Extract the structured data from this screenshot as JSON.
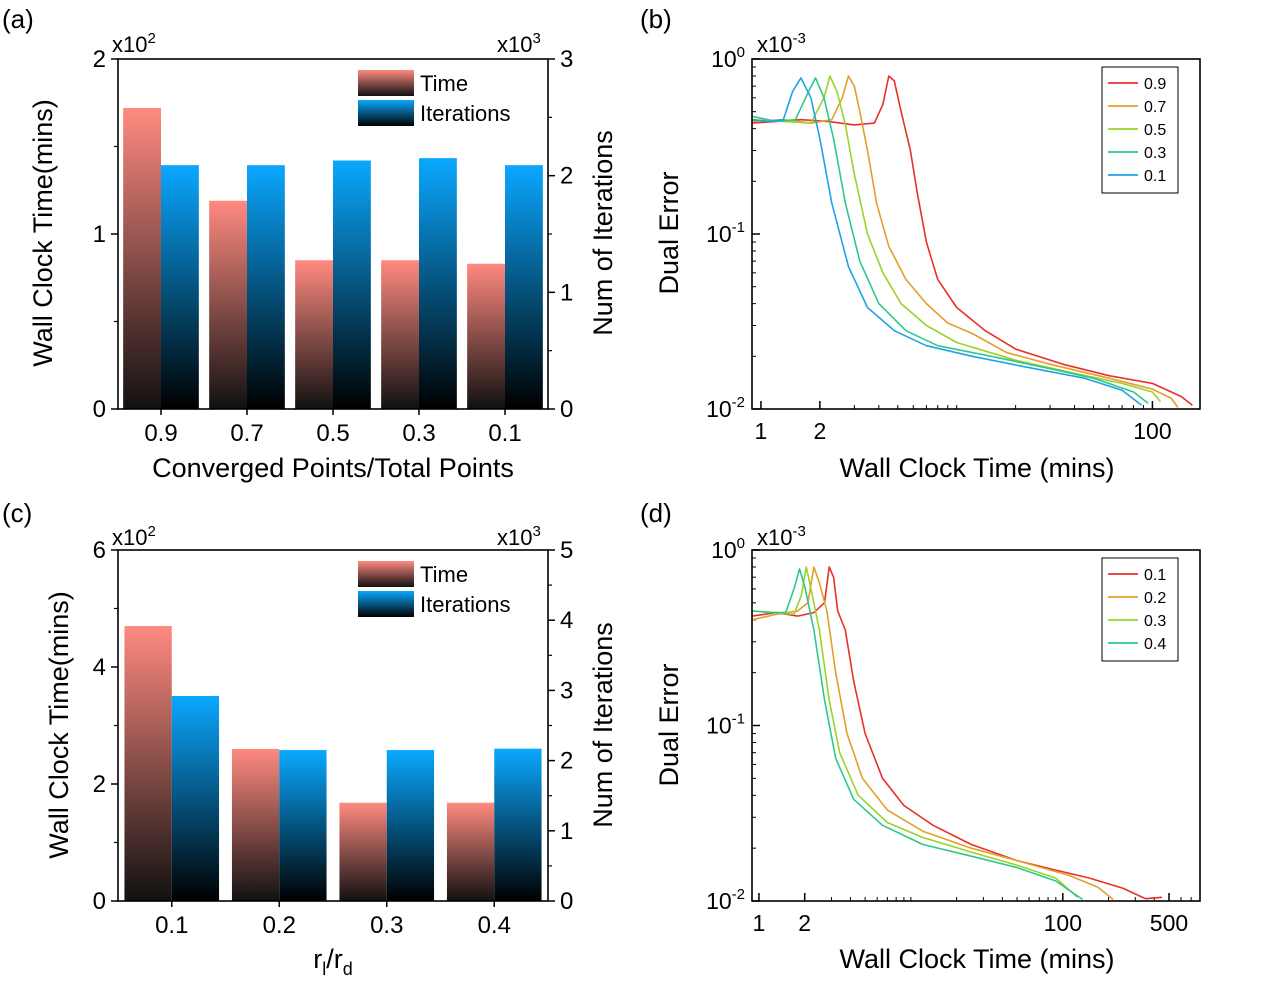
{
  "chart_data": [
    {
      "id": "a",
      "panel_label": "(a)",
      "type": "bar",
      "categories": [
        "0.9",
        "0.7",
        "0.5",
        "0.3",
        "0.1"
      ],
      "xlabel": "Converged Points/Total Points",
      "ylabel_left": "Wall Clock Time(mins)",
      "ylabel_right": "Num of Iterations",
      "multiplier_left": "x10",
      "multiplier_left_exp": "2",
      "multiplier_right": "x10",
      "multiplier_right_exp": "3",
      "ylim_left": [
        0,
        2
      ],
      "ylim_right": [
        0,
        3
      ],
      "yticks_left": [
        "0",
        "1",
        "2"
      ],
      "yticks_right": [
        "0",
        "1",
        "2",
        "3"
      ],
      "legend_position": "top-right",
      "series": [
        {
          "name": "Time",
          "axis": "left",
          "values": [
            1.72,
            1.19,
            0.85,
            0.85,
            0.83
          ]
        },
        {
          "name": "Iterations",
          "axis": "right",
          "values": [
            2.09,
            2.09,
            2.13,
            2.15,
            2.09
          ]
        }
      ]
    },
    {
      "id": "b",
      "panel_label": "(b)",
      "type": "line",
      "x_scale": "log",
      "y_scale": "log",
      "xlabel": "Wall Clock Time (mins)",
      "ylabel": "Dual Error",
      "multiplier": "x10",
      "multiplier_exp": "-3",
      "xlim": [
        0.9,
        175
      ],
      "ylim": [
        0.01,
        1
      ],
      "xticks": [
        {
          "v": 1,
          "t": "1"
        },
        {
          "v": 2,
          "t": "2"
        },
        {
          "v": 100,
          "t": "100"
        }
      ],
      "yticks": [
        {
          "v": 1,
          "b": "10",
          "e": "0"
        },
        {
          "v": 0.1,
          "b": "10",
          "e": "-1"
        },
        {
          "v": 0.01,
          "b": "10",
          "e": "-2"
        }
      ],
      "legend_position": "top-right",
      "series": [
        {
          "name": "0.9",
          "color": "#e8302b",
          "points": [
            [
              0.9,
              0.43
            ],
            [
              1.2,
              0.44
            ],
            [
              1.6,
              0.45
            ],
            [
              2.2,
              0.44
            ],
            [
              3.0,
              0.42
            ],
            [
              3.8,
              0.43
            ],
            [
              4.2,
              0.55
            ],
            [
              4.5,
              0.8
            ],
            [
              4.8,
              0.75
            ],
            [
              5.1,
              0.55
            ],
            [
              5.4,
              0.42
            ],
            [
              5.8,
              0.3
            ],
            [
              6.3,
              0.17
            ],
            [
              7.0,
              0.09
            ],
            [
              8.0,
              0.055
            ],
            [
              10,
              0.038
            ],
            [
              14,
              0.028
            ],
            [
              20,
              0.022
            ],
            [
              35,
              0.018
            ],
            [
              60,
              0.0155
            ],
            [
              100,
              0.014
            ],
            [
              140,
              0.0118
            ],
            [
              160,
              0.0105
            ]
          ]
        },
        {
          "name": "0.7",
          "color": "#e2a02a",
          "points": [
            [
              0.9,
              0.44
            ],
            [
              1.3,
              0.45
            ],
            [
              1.8,
              0.43
            ],
            [
              2.3,
              0.45
            ],
            [
              2.6,
              0.6
            ],
            [
              2.8,
              0.8
            ],
            [
              3.0,
              0.7
            ],
            [
              3.2,
              0.5
            ],
            [
              3.5,
              0.3
            ],
            [
              3.9,
              0.15
            ],
            [
              4.5,
              0.085
            ],
            [
              5.5,
              0.055
            ],
            [
              7,
              0.04
            ],
            [
              9,
              0.031
            ],
            [
              12,
              0.027
            ],
            [
              18,
              0.021
            ],
            [
              30,
              0.018
            ],
            [
              60,
              0.015
            ],
            [
              100,
              0.013
            ],
            [
              125,
              0.0115
            ],
            [
              135,
              0.0102
            ]
          ]
        },
        {
          "name": "0.5",
          "color": "#9ad32a",
          "points": [
            [
              0.9,
              0.45
            ],
            [
              1.3,
              0.44
            ],
            [
              1.8,
              0.43
            ],
            [
              2.1,
              0.6
            ],
            [
              2.25,
              0.8
            ],
            [
              2.45,
              0.65
            ],
            [
              2.7,
              0.42
            ],
            [
              3.0,
              0.22
            ],
            [
              3.5,
              0.1
            ],
            [
              4.2,
              0.06
            ],
            [
              5.2,
              0.04
            ],
            [
              7,
              0.03
            ],
            [
              10,
              0.024
            ],
            [
              20,
              0.019
            ],
            [
              40,
              0.016
            ],
            [
              70,
              0.014
            ],
            [
              100,
              0.0125
            ],
            [
              110,
              0.011
            ]
          ]
        },
        {
          "name": "0.3",
          "color": "#2ec98a",
          "points": [
            [
              0.9,
              0.47
            ],
            [
              1.2,
              0.44
            ],
            [
              1.5,
              0.45
            ],
            [
              1.75,
              0.65
            ],
            [
              1.9,
              0.78
            ],
            [
              2.1,
              0.6
            ],
            [
              2.35,
              0.35
            ],
            [
              2.7,
              0.15
            ],
            [
              3.2,
              0.07
            ],
            [
              4.0,
              0.04
            ],
            [
              5.5,
              0.028
            ],
            [
              8,
              0.023
            ],
            [
              15,
              0.02
            ],
            [
              30,
              0.017
            ],
            [
              50,
              0.015
            ],
            [
              80,
              0.0125
            ],
            [
              95,
              0.0108
            ]
          ]
        },
        {
          "name": "0.1",
          "color": "#1ea3e8",
          "points": [
            [
              0.9,
              0.45
            ],
            [
              1.1,
              0.44
            ],
            [
              1.3,
              0.45
            ],
            [
              1.45,
              0.65
            ],
            [
              1.6,
              0.78
            ],
            [
              1.8,
              0.6
            ],
            [
              2.0,
              0.35
            ],
            [
              2.3,
              0.15
            ],
            [
              2.8,
              0.065
            ],
            [
              3.5,
              0.038
            ],
            [
              4.8,
              0.028
            ],
            [
              7,
              0.023
            ],
            [
              12,
              0.02
            ],
            [
              25,
              0.017
            ],
            [
              45,
              0.015
            ],
            [
              70,
              0.0128
            ],
            [
              88,
              0.0105
            ]
          ]
        }
      ]
    },
    {
      "id": "c",
      "panel_label": "(c)",
      "type": "bar",
      "categories": [
        "0.1",
        "0.2",
        "0.3",
        "0.4"
      ],
      "xlabel_main": "r",
      "xlabel_sub1": "l",
      "xlabel_mid": "/r",
      "xlabel_sub2": "d",
      "ylabel_left": "Wall Clock Time(mins)",
      "ylabel_right": "Num of Iterations",
      "multiplier_left": "x10",
      "multiplier_left_exp": "2",
      "multiplier_right": "x10",
      "multiplier_right_exp": "3",
      "ylim_left": [
        0,
        6
      ],
      "ylim_right": [
        0,
        5
      ],
      "yticks_left": [
        "0",
        "2",
        "4",
        "6"
      ],
      "yticks_right": [
        "0",
        "1",
        "2",
        "3",
        "4",
        "5"
      ],
      "legend_position": "top-right",
      "series": [
        {
          "name": "Time",
          "axis": "left",
          "values": [
            4.7,
            2.6,
            1.68,
            1.68
          ]
        },
        {
          "name": "Iterations",
          "axis": "right",
          "values": [
            2.92,
            2.15,
            2.15,
            2.17
          ]
        }
      ]
    },
    {
      "id": "d",
      "panel_label": "(d)",
      "type": "line",
      "x_scale": "log",
      "y_scale": "log",
      "xlabel": "Wall Clock Time (mins)",
      "ylabel": "Dual Error",
      "multiplier": "x10",
      "multiplier_exp": "-3",
      "xlim": [
        0.9,
        800
      ],
      "ylim": [
        0.01,
        1
      ],
      "xticks": [
        {
          "v": 1,
          "t": "1"
        },
        {
          "v": 2,
          "t": "2"
        },
        {
          "v": 100,
          "t": "100"
        },
        {
          "v": 500,
          "t": "500"
        }
      ],
      "yticks": [
        {
          "v": 1,
          "b": "10",
          "e": "0"
        },
        {
          "v": 0.1,
          "b": "10",
          "e": "-1"
        },
        {
          "v": 0.01,
          "b": "10",
          "e": "-2"
        }
      ],
      "legend_position": "top-right",
      "series": [
        {
          "name": "0.1",
          "color": "#e8302b",
          "points": [
            [
              0.9,
              0.42
            ],
            [
              1.3,
              0.44
            ],
            [
              1.8,
              0.42
            ],
            [
              2.3,
              0.44
            ],
            [
              2.7,
              0.5
            ],
            [
              2.9,
              0.8
            ],
            [
              3.1,
              0.7
            ],
            [
              3.3,
              0.45
            ],
            [
              3.7,
              0.35
            ],
            [
              4.2,
              0.18
            ],
            [
              5,
              0.09
            ],
            [
              6.5,
              0.05
            ],
            [
              9,
              0.035
            ],
            [
              14,
              0.027
            ],
            [
              25,
              0.021
            ],
            [
              50,
              0.017
            ],
            [
              90,
              0.015
            ],
            [
              150,
              0.0135
            ],
            [
              250,
              0.0118
            ],
            [
              350,
              0.0103
            ],
            [
              450,
              0.0105
            ]
          ]
        },
        {
          "name": "0.2",
          "color": "#e2a02a",
          "points": [
            [
              0.9,
              0.4
            ],
            [
              1.3,
              0.43
            ],
            [
              1.8,
              0.45
            ],
            [
              2.1,
              0.5
            ],
            [
              2.3,
              0.8
            ],
            [
              2.5,
              0.65
            ],
            [
              2.8,
              0.45
            ],
            [
              3.2,
              0.2
            ],
            [
              3.8,
              0.09
            ],
            [
              4.8,
              0.05
            ],
            [
              7,
              0.033
            ],
            [
              12,
              0.025
            ],
            [
              25,
              0.02
            ],
            [
              50,
              0.017
            ],
            [
              110,
              0.014
            ],
            [
              170,
              0.012
            ],
            [
              215,
              0.0102
            ]
          ]
        },
        {
          "name": "0.3",
          "color": "#9ad32a",
          "points": [
            [
              0.9,
              0.45
            ],
            [
              1.3,
              0.44
            ],
            [
              1.7,
              0.43
            ],
            [
              1.9,
              0.55
            ],
            [
              2.05,
              0.8
            ],
            [
              2.2,
              0.6
            ],
            [
              2.5,
              0.35
            ],
            [
              2.9,
              0.14
            ],
            [
              3.4,
              0.07
            ],
            [
              4.5,
              0.04
            ],
            [
              7,
              0.028
            ],
            [
              12,
              0.023
            ],
            [
              25,
              0.019
            ],
            [
              50,
              0.016
            ],
            [
              90,
              0.0135
            ],
            [
              125,
              0.0105
            ]
          ]
        },
        {
          "name": "0.4",
          "color": "#2ec98a",
          "points": [
            [
              0.9,
              0.45
            ],
            [
              1.2,
              0.44
            ],
            [
              1.5,
              0.44
            ],
            [
              1.7,
              0.6
            ],
            [
              1.85,
              0.78
            ],
            [
              2.0,
              0.62
            ],
            [
              2.3,
              0.35
            ],
            [
              2.7,
              0.14
            ],
            [
              3.2,
              0.065
            ],
            [
              4.2,
              0.038
            ],
            [
              6.5,
              0.027
            ],
            [
              12,
              0.021
            ],
            [
              25,
              0.018
            ],
            [
              50,
              0.0155
            ],
            [
              90,
              0.013
            ],
            [
              135,
              0.0102
            ]
          ]
        }
      ]
    }
  ]
}
